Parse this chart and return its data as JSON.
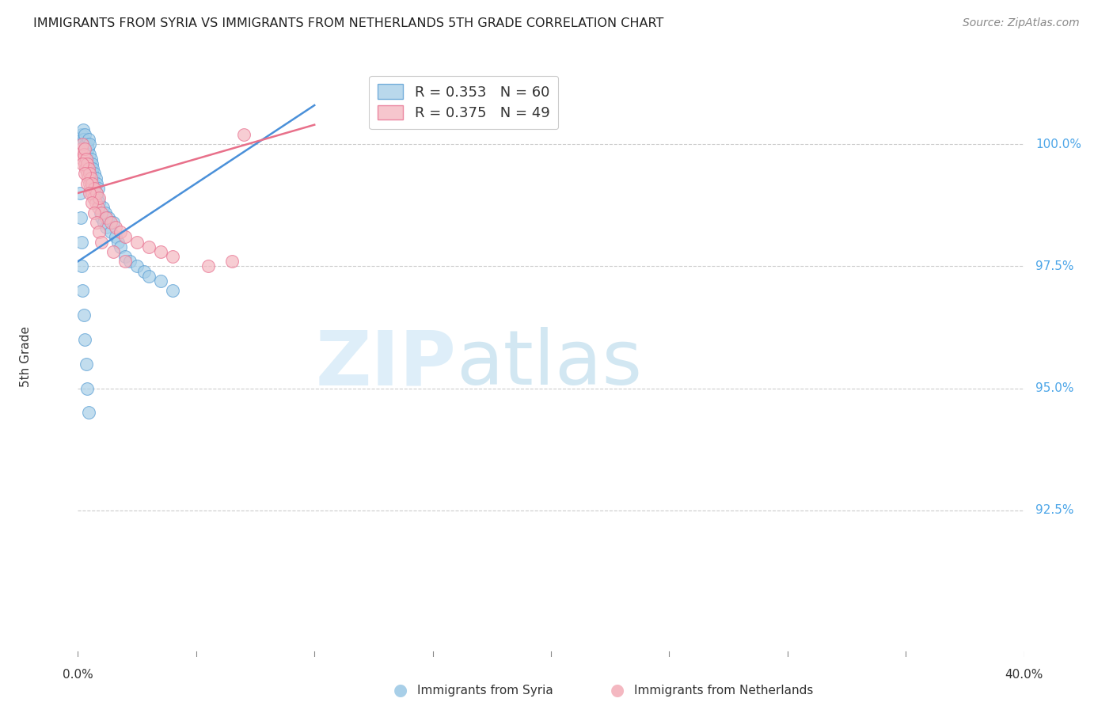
{
  "title": "IMMIGRANTS FROM SYRIA VS IMMIGRANTS FROM NETHERLANDS 5TH GRADE CORRELATION CHART",
  "source": "Source: ZipAtlas.com",
  "ylabel": "5th Grade",
  "x_range": [
    0.0,
    40.0
  ],
  "y_range": [
    89.5,
    101.8
  ],
  "y_ticks": [
    92.5,
    95.0,
    97.5,
    100.0
  ],
  "y_tick_labels": [
    "92.5%",
    "95.0%",
    "97.5%",
    "100.0%"
  ],
  "legend1_label": "R = 0.353   N = 60",
  "legend2_label": "R = 0.375   N = 49",
  "blue_color": "#a8cfe8",
  "pink_color": "#f4b8c1",
  "blue_edge_color": "#5a9fd4",
  "pink_edge_color": "#e87090",
  "blue_line_color": "#4a90d9",
  "pink_line_color": "#e8708a",
  "grid_color": "#cccccc",
  "tick_label_color": "#4da6e8",
  "syria_x": [
    0.15,
    0.18,
    0.2,
    0.22,
    0.25,
    0.28,
    0.3,
    0.32,
    0.35,
    0.38,
    0.4,
    0.42,
    0.45,
    0.48,
    0.5,
    0.5,
    0.52,
    0.55,
    0.58,
    0.6,
    0.6,
    0.62,
    0.65,
    0.7,
    0.72,
    0.75,
    0.78,
    0.8,
    0.82,
    0.85,
    0.9,
    0.95,
    1.0,
    1.05,
    1.1,
    1.15,
    1.2,
    1.3,
    1.4,
    1.5,
    1.6,
    1.7,
    1.8,
    2.0,
    2.2,
    2.5,
    2.8,
    3.0,
    3.5,
    4.0,
    0.1,
    0.12,
    0.14,
    0.16,
    0.2,
    0.25,
    0.3,
    0.35,
    0.4,
    0.45
  ],
  "syria_y": [
    100.2,
    100.1,
    100.0,
    100.3,
    100.1,
    99.9,
    100.2,
    100.0,
    99.8,
    100.0,
    99.7,
    99.9,
    100.1,
    99.8,
    100.0,
    99.6,
    99.5,
    99.7,
    99.4,
    99.6,
    99.3,
    99.5,
    99.2,
    99.4,
    99.1,
    99.3,
    99.0,
    99.2,
    98.9,
    99.1,
    98.8,
    98.6,
    98.5,
    98.7,
    98.4,
    98.6,
    98.3,
    98.5,
    98.2,
    98.4,
    98.1,
    98.0,
    97.9,
    97.7,
    97.6,
    97.5,
    97.4,
    97.3,
    97.2,
    97.0,
    99.0,
    98.5,
    98.0,
    97.5,
    97.0,
    96.5,
    96.0,
    95.5,
    95.0,
    94.5
  ],
  "netherlands_x": [
    0.1,
    0.15,
    0.18,
    0.2,
    0.25,
    0.28,
    0.3,
    0.32,
    0.35,
    0.38,
    0.4,
    0.42,
    0.45,
    0.48,
    0.5,
    0.52,
    0.55,
    0.58,
    0.6,
    0.65,
    0.7,
    0.75,
    0.8,
    0.85,
    0.9,
    1.0,
    1.2,
    1.4,
    1.6,
    1.8,
    2.0,
    2.5,
    3.0,
    3.5,
    4.0,
    5.5,
    6.5,
    7.0,
    0.2,
    0.3,
    0.4,
    0.5,
    0.6,
    0.7,
    0.8,
    0.9,
    1.0,
    1.5,
    2.0
  ],
  "netherlands_y": [
    99.8,
    99.9,
    100.0,
    99.7,
    99.8,
    99.6,
    99.9,
    99.5,
    99.7,
    99.4,
    99.6,
    99.3,
    99.5,
    99.2,
    99.4,
    99.1,
    99.3,
    99.0,
    99.2,
    98.9,
    99.1,
    98.8,
    99.0,
    98.7,
    98.9,
    98.6,
    98.5,
    98.4,
    98.3,
    98.2,
    98.1,
    98.0,
    97.9,
    97.8,
    97.7,
    97.5,
    97.6,
    100.2,
    99.6,
    99.4,
    99.2,
    99.0,
    98.8,
    98.6,
    98.4,
    98.2,
    98.0,
    97.8,
    97.6
  ],
  "blue_line_x0": 0.0,
  "blue_line_y0": 97.6,
  "blue_line_x1": 10.0,
  "blue_line_y1": 100.8,
  "pink_line_x0": 0.0,
  "pink_line_y0": 99.0,
  "pink_line_x1": 10.0,
  "pink_line_y1": 100.4
}
